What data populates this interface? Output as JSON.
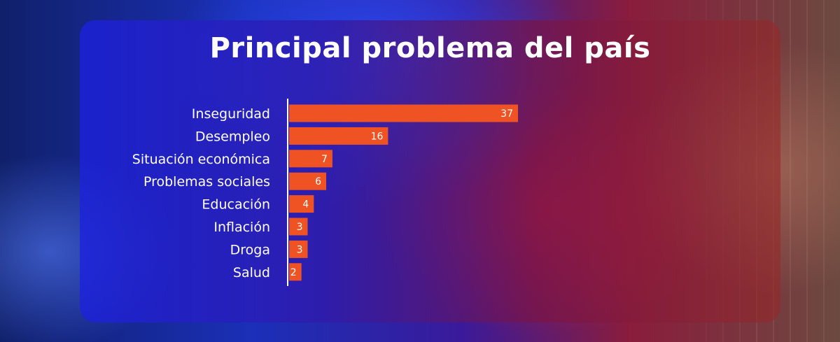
{
  "chart_data": {
    "type": "bar",
    "orientation": "horizontal",
    "title": "Principal problema del país",
    "categories": [
      "Inseguridad",
      "Desempleo",
      "Situación económica",
      "Problemas sociales",
      "Educación",
      "Inflación",
      "Droga",
      "Salud"
    ],
    "values": [
      37,
      16,
      7,
      6,
      4,
      3,
      3,
      2
    ],
    "bar_color": "#f05323",
    "grid": false,
    "legend": "none"
  }
}
